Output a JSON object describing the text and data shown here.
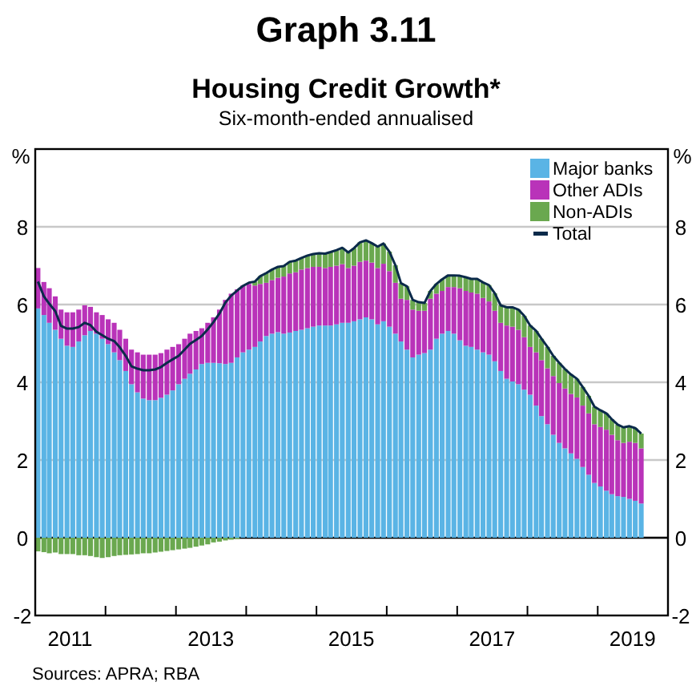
{
  "chart_data": {
    "type": "bar",
    "stacked": true,
    "title": "Graph 3.11",
    "subtitle": "Housing Credit Growth*",
    "annotations": [
      "Six-month-ended annualised",
      "Sources: APRA; RBA"
    ],
    "ylabel": "%",
    "y2label": "%",
    "x": [
      "2011-01-15",
      "2011-02-15",
      "2011-03-15",
      "2011-04-15",
      "2011-05-15",
      "2011-06-15",
      "2011-07-15",
      "2011-08-15",
      "2011-09-15",
      "2011-10-15",
      "2011-11-15",
      "2011-12-15",
      "2012-01-15",
      "2012-02-15",
      "2012-03-15",
      "2012-04-15",
      "2012-05-15",
      "2012-06-15",
      "2012-07-15",
      "2012-08-15",
      "2012-09-15",
      "2012-10-15",
      "2012-11-15",
      "2012-12-15",
      "2013-01-15",
      "2013-02-15",
      "2013-03-15",
      "2013-04-15",
      "2013-05-15",
      "2013-06-15",
      "2013-07-15",
      "2013-08-15",
      "2013-09-15",
      "2013-10-15",
      "2013-11-15",
      "2013-12-15",
      "2014-01-15",
      "2014-02-15",
      "2014-03-15",
      "2014-04-15",
      "2014-05-15",
      "2014-06-15",
      "2014-07-15",
      "2014-08-15",
      "2014-09-15",
      "2014-10-15",
      "2014-11-15",
      "2014-12-15",
      "2015-01-15",
      "2015-02-15",
      "2015-03-15",
      "2015-04-15",
      "2015-05-15",
      "2015-06-15",
      "2015-07-15",
      "2015-08-15",
      "2015-09-15",
      "2015-10-15",
      "2015-11-15",
      "2015-12-15",
      "2016-01-15",
      "2016-02-15",
      "2016-03-15",
      "2016-04-15",
      "2016-05-15",
      "2016-06-15",
      "2016-07-15",
      "2016-08-15",
      "2016-09-15",
      "2016-10-15",
      "2016-11-15",
      "2016-12-15",
      "2017-01-15",
      "2017-02-15",
      "2017-03-15",
      "2017-04-15",
      "2017-05-15",
      "2017-06-15",
      "2017-07-15",
      "2017-08-15",
      "2017-09-15",
      "2017-10-15",
      "2017-11-15",
      "2017-12-15",
      "2018-01-15",
      "2018-02-15",
      "2018-03-15",
      "2018-04-15",
      "2018-05-15",
      "2018-06-15",
      "2018-07-15",
      "2018-08-15",
      "2018-09-15",
      "2018-10-15",
      "2018-11-15",
      "2018-12-15",
      "2019-01-15",
      "2019-02-15",
      "2019-03-15",
      "2019-04-15",
      "2019-05-15",
      "2019-06-15",
      "2019-07-15",
      "2019-08-15"
    ],
    "series": [
      {
        "name": "Major banks",
        "color": "#5ab4e5",
        "values": [
          5.9,
          5.73,
          5.53,
          5.35,
          5.12,
          4.94,
          4.91,
          5.05,
          5.21,
          5.32,
          5.25,
          5.12,
          4.98,
          4.77,
          4.57,
          4.29,
          3.95,
          3.74,
          3.58,
          3.54,
          3.54,
          3.6,
          3.68,
          3.79,
          3.95,
          4.09,
          4.22,
          4.33,
          4.47,
          4.5,
          4.5,
          4.49,
          4.47,
          4.5,
          4.64,
          4.77,
          4.84,
          4.91,
          5.05,
          5.19,
          5.25,
          5.29,
          5.25,
          5.28,
          5.32,
          5.35,
          5.39,
          5.43,
          5.46,
          5.46,
          5.46,
          5.49,
          5.53,
          5.53,
          5.57,
          5.62,
          5.67,
          5.62,
          5.49,
          5.57,
          5.43,
          5.25,
          5.05,
          4.84,
          4.64,
          4.71,
          4.75,
          4.84,
          5.12,
          5.25,
          5.32,
          5.25,
          5.08,
          4.94,
          4.91,
          4.84,
          4.77,
          4.71,
          4.54,
          4.29,
          4.09,
          4.02,
          3.95,
          3.81,
          3.68,
          3.4,
          3.13,
          2.92,
          2.65,
          2.44,
          2.3,
          2.17,
          2.03,
          1.82,
          1.62,
          1.41,
          1.32,
          1.21,
          1.12,
          1.07,
          1.05,
          1.0,
          0.95,
          0.88
        ]
      },
      {
        "name": "Other ADIs",
        "color": "#b933b9",
        "values": [
          1.04,
          0.85,
          0.89,
          0.86,
          0.75,
          0.86,
          0.89,
          0.82,
          0.77,
          0.62,
          0.55,
          0.61,
          0.64,
          0.76,
          0.78,
          0.83,
          0.89,
          1.03,
          1.13,
          1.17,
          1.17,
          1.15,
          1.16,
          1.12,
          1.03,
          1.03,
          1.03,
          0.99,
          0.92,
          1.03,
          1.17,
          1.38,
          1.65,
          1.78,
          1.75,
          1.72,
          1.69,
          1.58,
          1.48,
          1.37,
          1.38,
          1.4,
          1.47,
          1.52,
          1.51,
          1.55,
          1.55,
          1.54,
          1.51,
          1.48,
          1.51,
          1.51,
          1.51,
          1.41,
          1.43,
          1.48,
          1.46,
          1.46,
          1.45,
          1.48,
          1.43,
          1.31,
          1.1,
          1.28,
          1.23,
          1.13,
          1.09,
          1.31,
          1.16,
          1.1,
          1.13,
          1.2,
          1.34,
          1.41,
          1.4,
          1.44,
          1.4,
          1.37,
          1.3,
          1.24,
          1.37,
          1.41,
          1.4,
          1.35,
          1.23,
          1.37,
          1.44,
          1.44,
          1.51,
          1.54,
          1.54,
          1.53,
          1.58,
          1.58,
          1.58,
          1.51,
          1.53,
          1.57,
          1.53,
          1.44,
          1.39,
          1.47,
          1.49,
          1.42
        ]
      },
      {
        "name": "Non-ADIs",
        "color": "#6aa84f",
        "values": [
          -0.35,
          -0.37,
          -0.4,
          -0.38,
          -0.42,
          -0.42,
          -0.42,
          -0.45,
          -0.45,
          -0.47,
          -0.5,
          -0.52,
          -0.5,
          -0.47,
          -0.45,
          -0.44,
          -0.43,
          -0.42,
          -0.4,
          -0.4,
          -0.38,
          -0.36,
          -0.34,
          -0.32,
          -0.3,
          -0.28,
          -0.26,
          -0.23,
          -0.2,
          -0.17,
          -0.12,
          -0.1,
          -0.07,
          -0.05,
          -0.03,
          null,
          null,
          0.1,
          0.2,
          0.25,
          0.27,
          0.28,
          0.27,
          0.3,
          0.3,
          0.3,
          0.32,
          0.33,
          0.35,
          0.37,
          0.38,
          0.4,
          0.42,
          0.4,
          0.45,
          0.5,
          0.52,
          0.5,
          0.55,
          0.52,
          0.5,
          0.45,
          0.4,
          0.35,
          0.25,
          0.22,
          0.2,
          0.2,
          0.25,
          0.3,
          0.3,
          0.3,
          0.32,
          0.35,
          0.35,
          0.38,
          0.4,
          0.42,
          0.45,
          0.45,
          0.47,
          0.5,
          0.52,
          0.55,
          0.55,
          0.55,
          0.55,
          0.55,
          0.52,
          0.52,
          0.5,
          0.5,
          0.48,
          0.48,
          0.45,
          0.45,
          0.43,
          0.42,
          0.4,
          0.4,
          0.4,
          0.4,
          0.38,
          0.38
        ]
      },
      {
        "name": "Total",
        "type": "line",
        "color": "#0b2a4a",
        "values": [
          6.59,
          6.21,
          6.02,
          5.83,
          5.45,
          5.38,
          5.38,
          5.42,
          5.53,
          5.47,
          5.3,
          5.21,
          5.12,
          5.06,
          4.9,
          4.68,
          4.41,
          4.35,
          4.31,
          4.31,
          4.33,
          4.39,
          4.5,
          4.59,
          4.68,
          4.84,
          4.99,
          5.09,
          5.19,
          5.36,
          5.55,
          5.77,
          6.05,
          6.23,
          6.36,
          6.48,
          6.56,
          6.59,
          6.73,
          6.81,
          6.9,
          6.97,
          6.99,
          7.1,
          7.13,
          7.2,
          7.26,
          7.3,
          7.32,
          7.31,
          7.35,
          7.4,
          7.46,
          7.34,
          7.45,
          7.6,
          7.65,
          7.58,
          7.49,
          7.57,
          7.36,
          7.01,
          6.55,
          6.47,
          6.12,
          6.06,
          6.04,
          6.35,
          6.53,
          6.65,
          6.75,
          6.75,
          6.74,
          6.7,
          6.66,
          6.66,
          6.57,
          6.5,
          6.29,
          5.98,
          5.93,
          5.93,
          5.87,
          5.71,
          5.46,
          5.32,
          5.12,
          4.91,
          4.68,
          4.5,
          4.34,
          4.2,
          4.09,
          3.88,
          3.65,
          3.37,
          3.28,
          3.2,
          3.05,
          2.91,
          2.84,
          2.87,
          2.82,
          2.68
        ]
      }
    ],
    "xlim": [
      "2011-01-01",
      "2020-01-01"
    ],
    "xticks": [
      {
        "value": "2011-01-01",
        "label": null
      },
      {
        "value": "2011-07-01",
        "label": "2011"
      },
      {
        "value": "2012-01-01",
        "label": null
      },
      {
        "value": "2013-01-01",
        "label": null
      },
      {
        "value": "2013-07-01",
        "label": "2013"
      },
      {
        "value": "2014-01-01",
        "label": null
      },
      {
        "value": "2015-01-01",
        "label": null
      },
      {
        "value": "2015-07-01",
        "label": "2015"
      },
      {
        "value": "2016-01-01",
        "label": null
      },
      {
        "value": "2017-01-01",
        "label": null
      },
      {
        "value": "2017-07-01",
        "label": "2017"
      },
      {
        "value": "2018-01-01",
        "label": null
      },
      {
        "value": "2019-01-01",
        "label": null
      },
      {
        "value": "2019-07-01",
        "label": "2019"
      },
      {
        "value": "2020-01-01",
        "label": null
      }
    ],
    "ylim": [
      -2,
      10
    ],
    "yticks": [
      -2,
      0,
      2,
      4,
      6,
      8
    ],
    "y2lim": [
      -2,
      10
    ],
    "y2ticks": [
      -2,
      0,
      2,
      4,
      6,
      8
    ],
    "grid": "y",
    "legend": "top right"
  }
}
